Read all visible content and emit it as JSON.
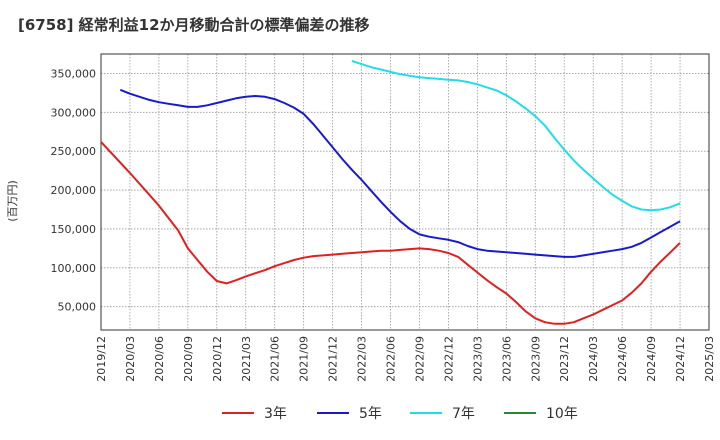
{
  "chart_data": {
    "type": "line",
    "title": "[6758]  経常利益12か月移動合計の標準偏差の推移",
    "ylabel": "(百万円)",
    "xlabel": "",
    "ylim": [
      20000,
      375000
    ],
    "yticks": [
      50000,
      100000,
      150000,
      200000,
      250000,
      300000,
      350000
    ],
    "ytick_labels": [
      "50,000",
      "100,000",
      "150,000",
      "200,000",
      "250,000",
      "300,000",
      "350,000"
    ],
    "xticks": [
      "2019/12",
      "2020/03",
      "2020/06",
      "2020/09",
      "2020/12",
      "2021/03",
      "2021/06",
      "2021/09",
      "2021/12",
      "2022/03",
      "2022/06",
      "2022/09",
      "2022/12",
      "2023/03",
      "2023/06",
      "2023/09",
      "2023/12",
      "2024/03",
      "2024/06",
      "2024/09",
      "2024/12",
      "2025/03"
    ],
    "grid": true,
    "legend_position": "bottom",
    "series": [
      {
        "name": "3年",
        "color": "#e02020",
        "points": [
          [
            "2019/12",
            262000
          ],
          [
            "2020/03",
            222000
          ],
          [
            "2020/06",
            180000
          ],
          [
            "2020/08",
            148000
          ],
          [
            "2020/09",
            125000
          ],
          [
            "2020/10",
            110000
          ],
          [
            "2020/11",
            95000
          ],
          [
            "2020/12",
            83000
          ],
          [
            "2021/01",
            80000
          ],
          [
            "2021/02",
            84000
          ],
          [
            "2021/03",
            89000
          ],
          [
            "2021/04",
            93000
          ],
          [
            "2021/05",
            97000
          ],
          [
            "2021/06",
            102000
          ],
          [
            "2021/07",
            106000
          ],
          [
            "2021/08",
            110000
          ],
          [
            "2021/09",
            113000
          ],
          [
            "2021/10",
            115000
          ],
          [
            "2021/11",
            116000
          ],
          [
            "2021/12",
            117000
          ],
          [
            "2022/01",
            118000
          ],
          [
            "2022/02",
            119000
          ],
          [
            "2022/03",
            120000
          ],
          [
            "2022/04",
            121000
          ],
          [
            "2022/05",
            122000
          ],
          [
            "2022/06",
            122000
          ],
          [
            "2022/07",
            123000
          ],
          [
            "2022/08",
            124000
          ],
          [
            "2022/09",
            125000
          ],
          [
            "2022/10",
            124000
          ],
          [
            "2022/11",
            122000
          ],
          [
            "2022/12",
            119000
          ],
          [
            "2023/01",
            114000
          ],
          [
            "2023/02",
            104000
          ],
          [
            "2023/03",
            94000
          ],
          [
            "2023/04",
            84000
          ],
          [
            "2023/05",
            75000
          ],
          [
            "2023/06",
            67000
          ],
          [
            "2023/07",
            56000
          ],
          [
            "2023/08",
            44000
          ],
          [
            "2023/09",
            35000
          ],
          [
            "2023/10",
            30000
          ],
          [
            "2023/11",
            28000
          ],
          [
            "2023/12",
            28000
          ],
          [
            "2024/01",
            30000
          ],
          [
            "2024/02",
            35000
          ],
          [
            "2024/03",
            40000
          ],
          [
            "2024/04",
            46000
          ],
          [
            "2024/05",
            52000
          ],
          [
            "2024/06",
            58000
          ],
          [
            "2024/07",
            68000
          ],
          [
            "2024/08",
            80000
          ],
          [
            "2024/09",
            95000
          ],
          [
            "2024/10",
            108000
          ],
          [
            "2024/11",
            120000
          ],
          [
            "2024/12",
            132000
          ]
        ]
      },
      {
        "name": "5年",
        "color": "#1a1acc",
        "points": [
          [
            "2020/02",
            329000
          ],
          [
            "2020/03",
            324000
          ],
          [
            "2020/04",
            320000
          ],
          [
            "2020/05",
            316000
          ],
          [
            "2020/06",
            313000
          ],
          [
            "2020/07",
            311000
          ],
          [
            "2020/08",
            309000
          ],
          [
            "2020/09",
            307000
          ],
          [
            "2020/10",
            307000
          ],
          [
            "2020/11",
            309000
          ],
          [
            "2020/12",
            312000
          ],
          [
            "2021/01",
            315000
          ],
          [
            "2021/02",
            318000
          ],
          [
            "2021/03",
            320000
          ],
          [
            "2021/04",
            321000
          ],
          [
            "2021/05",
            320000
          ],
          [
            "2021/06",
            317000
          ],
          [
            "2021/07",
            312000
          ],
          [
            "2021/08",
            306000
          ],
          [
            "2021/09",
            298000
          ],
          [
            "2021/10",
            285000
          ],
          [
            "2021/11",
            270000
          ],
          [
            "2021/12",
            255000
          ],
          [
            "2022/01",
            240000
          ],
          [
            "2022/02",
            226000
          ],
          [
            "2022/03",
            213000
          ],
          [
            "2022/04",
            199000
          ],
          [
            "2022/05",
            185000
          ],
          [
            "2022/06",
            172000
          ],
          [
            "2022/07",
            160000
          ],
          [
            "2022/08",
            150000
          ],
          [
            "2022/09",
            143000
          ],
          [
            "2022/10",
            140000
          ],
          [
            "2022/11",
            138000
          ],
          [
            "2022/12",
            136000
          ],
          [
            "2023/01",
            133000
          ],
          [
            "2023/02",
            128000
          ],
          [
            "2023/03",
            124000
          ],
          [
            "2023/04",
            122000
          ],
          [
            "2023/05",
            121000
          ],
          [
            "2023/06",
            120000
          ],
          [
            "2023/07",
            119000
          ],
          [
            "2023/08",
            118000
          ],
          [
            "2023/09",
            117000
          ],
          [
            "2023/10",
            116000
          ],
          [
            "2023/11",
            115000
          ],
          [
            "2023/12",
            114000
          ],
          [
            "2024/01",
            114000
          ],
          [
            "2024/02",
            116000
          ],
          [
            "2024/03",
            118000
          ],
          [
            "2024/04",
            120000
          ],
          [
            "2024/05",
            122000
          ],
          [
            "2024/06",
            124000
          ],
          [
            "2024/07",
            127000
          ],
          [
            "2024/08",
            132000
          ],
          [
            "2024/09",
            139000
          ],
          [
            "2024/10",
            146000
          ],
          [
            "2024/11",
            153000
          ],
          [
            "2024/12",
            160000
          ]
        ]
      },
      {
        "name": "7年",
        "color": "#22dde8",
        "points": [
          [
            "2022/02",
            366000
          ],
          [
            "2022/03",
            362000
          ],
          [
            "2022/04",
            358000
          ],
          [
            "2022/05",
            355000
          ],
          [
            "2022/06",
            352000
          ],
          [
            "2022/07",
            349000
          ],
          [
            "2022/08",
            347000
          ],
          [
            "2022/09",
            345000
          ],
          [
            "2022/10",
            344000
          ],
          [
            "2022/11",
            343000
          ],
          [
            "2022/12",
            342000
          ],
          [
            "2023/01",
            341000
          ],
          [
            "2023/02",
            339000
          ],
          [
            "2023/03",
            336000
          ],
          [
            "2023/04",
            332000
          ],
          [
            "2023/05",
            328000
          ],
          [
            "2023/06",
            322000
          ],
          [
            "2023/07",
            314000
          ],
          [
            "2023/08",
            305000
          ],
          [
            "2023/09",
            295000
          ],
          [
            "2023/10",
            283000
          ],
          [
            "2023/11",
            267000
          ],
          [
            "2023/12",
            252000
          ],
          [
            "2024/01",
            238000
          ],
          [
            "2024/02",
            226000
          ],
          [
            "2024/03",
            215000
          ],
          [
            "2024/04",
            204000
          ],
          [
            "2024/05",
            194000
          ],
          [
            "2024/06",
            186000
          ],
          [
            "2024/07",
            179000
          ],
          [
            "2024/08",
            175000
          ],
          [
            "2024/09",
            174000
          ],
          [
            "2024/10",
            175000
          ],
          [
            "2024/11",
            178000
          ],
          [
            "2024/12",
            183000
          ]
        ]
      },
      {
        "name": "10年",
        "color": "#2a8a2a",
        "points": []
      }
    ]
  }
}
